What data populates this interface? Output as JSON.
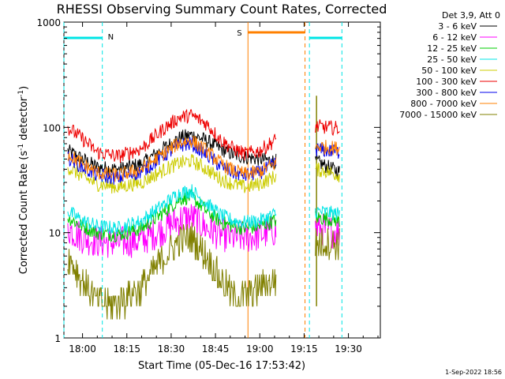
{
  "chart_data": {
    "type": "line",
    "title": "RHESSI Observing Summary Count Rates, Corrected",
    "xlabel": "Start Time (05-Dec-16 17:53:42)",
    "ylabel_main": "Corrected Count Rate (s",
    "ylabel_sup1": "-1",
    "ylabel_mid": " detector",
    "ylabel_sup2": "-1",
    "ylabel_end": ")",
    "y_scale": "log",
    "ylim": [
      1,
      1000
    ],
    "xlim_minutes": [
      -6.3,
      100.8
    ],
    "x_ticks": [
      {
        "label": "18:00",
        "minute": 0
      },
      {
        "label": "18:15",
        "minute": 15
      },
      {
        "label": "18:30",
        "minute": 30
      },
      {
        "label": "18:45",
        "minute": 45
      },
      {
        "label": "19:00",
        "minute": 60
      },
      {
        "label": "19:15",
        "minute": 75
      },
      {
        "label": "19:30",
        "minute": 90
      }
    ],
    "y_ticks": [
      {
        "label": "1",
        "value": 1
      },
      {
        "label": "10",
        "value": 10
      },
      {
        "label": "100",
        "value": 100
      },
      {
        "label": "1000",
        "value": 1000
      }
    ],
    "legend_title": "Det 3,9, Att 0",
    "legend_placement": "right",
    "data_gaps_minutes": [
      [
        65.5,
        78.8
      ]
    ],
    "series": [
      {
        "name": "3 - 6 keV",
        "color": "#000000",
        "points": [
          [
            -5,
            60
          ],
          [
            0,
            50
          ],
          [
            5,
            42
          ],
          [
            12,
            40
          ],
          [
            20,
            45
          ],
          [
            28,
            65
          ],
          [
            33,
            80
          ],
          [
            37,
            85
          ],
          [
            42,
            75
          ],
          [
            47,
            62
          ],
          [
            51,
            55
          ],
          [
            55,
            52
          ],
          [
            60,
            50
          ],
          [
            65,
            48
          ],
          [
            79,
            48
          ],
          [
            83,
            42
          ],
          [
            87,
            38
          ]
        ]
      },
      {
        "name": "6 - 12 keV",
        "color": "#ff00ff",
        "points": [
          [
            -5,
            11
          ],
          [
            0,
            9
          ],
          [
            5,
            8.3
          ],
          [
            12,
            8
          ],
          [
            20,
            8.5
          ],
          [
            28,
            11
          ],
          [
            33,
            13.5
          ],
          [
            37,
            14
          ],
          [
            42,
            11
          ],
          [
            47,
            9.5
          ],
          [
            51,
            9
          ],
          [
            55,
            9
          ],
          [
            60,
            9.5
          ],
          [
            65,
            10.5
          ],
          [
            79,
            11
          ],
          [
            83,
            10.5
          ],
          [
            87,
            10
          ]
        ]
      },
      {
        "name": "12 - 25 keV",
        "color": "#00cc00",
        "points": [
          [
            -5,
            14
          ],
          [
            0,
            11.5
          ],
          [
            5,
            10
          ],
          [
            12,
            9.5
          ],
          [
            20,
            11
          ],
          [
            28,
            16
          ],
          [
            33,
            21
          ],
          [
            37,
            22
          ],
          [
            42,
            16
          ],
          [
            47,
            12.5
          ],
          [
            51,
            11.5
          ],
          [
            55,
            11
          ],
          [
            60,
            11.5
          ],
          [
            65,
            13
          ],
          [
            79,
            14
          ],
          [
            83,
            13.5
          ],
          [
            87,
            13
          ]
        ]
      },
      {
        "name": "25 - 50 keV",
        "color": "#00e5e5",
        "points": [
          [
            -5,
            16
          ],
          [
            0,
            13
          ],
          [
            5,
            11.5
          ],
          [
            12,
            11
          ],
          [
            20,
            13
          ],
          [
            28,
            19
          ],
          [
            33,
            24
          ],
          [
            37,
            25
          ],
          [
            42,
            19
          ],
          [
            47,
            14.5
          ],
          [
            51,
            13
          ],
          [
            55,
            12.5
          ],
          [
            60,
            13
          ],
          [
            65,
            15
          ],
          [
            79,
            16
          ],
          [
            83,
            15.5
          ],
          [
            87,
            15
          ]
        ]
      },
      {
        "name": "50 - 100 keV",
        "color": "#cccc00",
        "points": [
          [
            -5,
            42
          ],
          [
            0,
            34
          ],
          [
            5,
            29
          ],
          [
            12,
            27
          ],
          [
            20,
            30
          ],
          [
            28,
            40
          ],
          [
            33,
            46
          ],
          [
            37,
            48
          ],
          [
            42,
            40
          ],
          [
            47,
            32
          ],
          [
            51,
            29
          ],
          [
            55,
            27
          ],
          [
            60,
            29
          ],
          [
            65,
            34
          ],
          [
            79,
            40
          ],
          [
            83,
            38
          ],
          [
            87,
            35
          ]
        ]
      },
      {
        "name": "100 - 300 keV",
        "color": "#ee0000",
        "points": [
          [
            -5,
            100
          ],
          [
            0,
            78
          ],
          [
            5,
            58
          ],
          [
            12,
            53
          ],
          [
            20,
            63
          ],
          [
            28,
            100
          ],
          [
            33,
            125
          ],
          [
            37,
            130
          ],
          [
            42,
            108
          ],
          [
            47,
            75
          ],
          [
            51,
            63
          ],
          [
            55,
            56
          ],
          [
            60,
            60
          ],
          [
            65,
            75
          ],
          [
            79,
            102
          ],
          [
            83,
            100
          ],
          [
            87,
            98
          ]
        ]
      },
      {
        "name": "300 - 800 keV",
        "color": "#0000ee",
        "points": [
          [
            -5,
            52
          ],
          [
            0,
            42
          ],
          [
            5,
            35
          ],
          [
            12,
            33
          ],
          [
            20,
            38
          ],
          [
            28,
            55
          ],
          [
            33,
            68
          ],
          [
            37,
            70
          ],
          [
            42,
            55
          ],
          [
            47,
            42
          ],
          [
            51,
            37
          ],
          [
            55,
            35
          ],
          [
            60,
            37
          ],
          [
            65,
            45
          ],
          [
            79,
            62
          ],
          [
            83,
            60
          ],
          [
            87,
            58
          ]
        ]
      },
      {
        "name": "800 - 7000 keV",
        "color": "#ff8000",
        "points": [
          [
            -5,
            56
          ],
          [
            0,
            45
          ],
          [
            5,
            37
          ],
          [
            12,
            35
          ],
          [
            20,
            40
          ],
          [
            28,
            58
          ],
          [
            33,
            72
          ],
          [
            37,
            75
          ],
          [
            42,
            60
          ],
          [
            47,
            45
          ],
          [
            51,
            39
          ],
          [
            55,
            36
          ],
          [
            60,
            38
          ],
          [
            65,
            45
          ],
          [
            79,
            66
          ],
          [
            83,
            65
          ],
          [
            87,
            63
          ]
        ]
      },
      {
        "name": "7000 - 15000 keV",
        "color": "#808000",
        "points": [
          [
            -5,
            6
          ],
          [
            0,
            3.5
          ],
          [
            5,
            2.2
          ],
          [
            12,
            2.2
          ],
          [
            20,
            3
          ],
          [
            28,
            6
          ],
          [
            33,
            8.5
          ],
          [
            37,
            9
          ],
          [
            42,
            6
          ],
          [
            47,
            3.5
          ],
          [
            51,
            2.5
          ],
          [
            55,
            2.5
          ],
          [
            60,
            3
          ],
          [
            65,
            3.5
          ],
          [
            79,
            8
          ],
          [
            83,
            8
          ],
          [
            87,
            8
          ]
        ]
      }
    ],
    "night_intervals": [
      {
        "label": "N",
        "start_minute": -6.3,
        "end_minute": 6.7,
        "color": "#00e5e5"
      },
      {
        "label": "",
        "start_minute": 76.8,
        "end_minute": 87.8,
        "color": "#00e5e5"
      }
    ],
    "saa_intervals": [
      {
        "label": "S",
        "start_minute": 56.0,
        "end_minute": 75.3,
        "color": "#ff8000"
      }
    ],
    "flag_marker_minute": 79.2,
    "footer_date": "1-Sep-2022 18:56"
  }
}
